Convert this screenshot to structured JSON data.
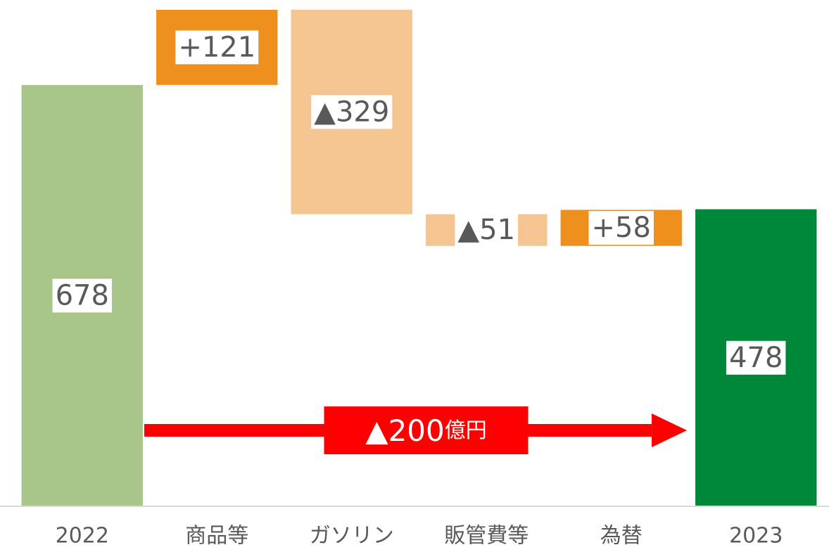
{
  "chart_data": {
    "type": "waterfall",
    "categories": [
      "2022",
      "商品等",
      "ガソリン",
      "販管費等",
      "為替",
      "2023"
    ],
    "values": [
      678,
      121,
      -329,
      -51,
      58,
      478
    ],
    "value_labels": [
      "678",
      "+121",
      "▲329",
      "▲51",
      "+58",
      "478"
    ],
    "totals": [
      true,
      false,
      false,
      false,
      false,
      true
    ],
    "colors": {
      "start": "#a9c58a",
      "end": "#00883a",
      "increase": "#ef8f1e",
      "decrease": "#f5c591"
    },
    "ylim": [
      0,
      800
    ],
    "annotation": {
      "text": "▲200",
      "unit": "億円",
      "color": "#ff0000"
    }
  }
}
